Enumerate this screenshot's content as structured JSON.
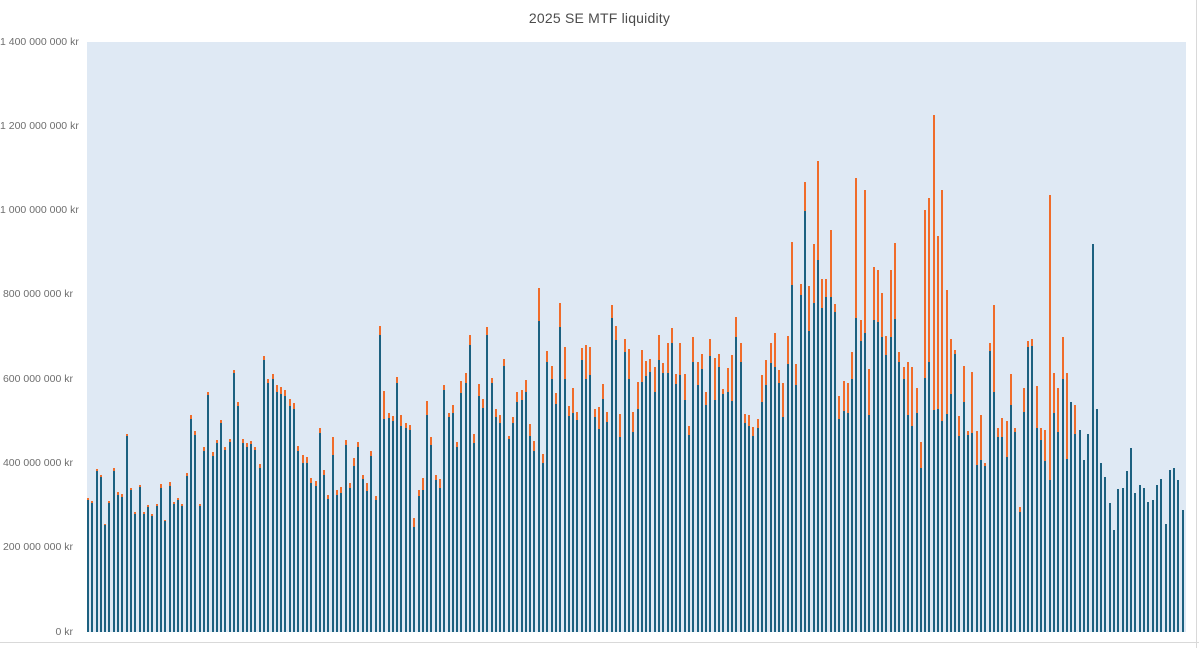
{
  "title": "2025 SE MTF liquidity",
  "colors": {
    "bar_primary": "#1d6180",
    "bar_secondary": "#f06c2a",
    "plot_background": "#dfe9f4",
    "title_text": "#4c4c4c",
    "axis_text": "#6e6e6e",
    "divider_line": "#d9d9d9"
  },
  "axes": {
    "y_unit": "kr",
    "y_ticks": [
      {
        "value": 1400000000,
        "label": "1 400 000 000 kr"
      },
      {
        "value": 1200000000,
        "label": "1 200 000 000 kr"
      },
      {
        "value": 1000000000,
        "label": "1 000 000 000 kr"
      },
      {
        "value": 800000000,
        "label": "800 000 000 kr"
      },
      {
        "value": 600000000,
        "label": "600 000 000 kr"
      },
      {
        "value": 400000000,
        "label": "400 000 000 kr"
      },
      {
        "value": 200000000,
        "label": "200 000 000 kr"
      },
      {
        "value": 0,
        "label": "0 kr"
      }
    ]
  },
  "chart_data": {
    "type": "bar",
    "stacked": true,
    "title": "2025 SE MTF liquidity",
    "xlabel": "",
    "ylabel": "kr",
    "ylim": [
      0,
      1400000000
    ],
    "grid": false,
    "legend_position": "none",
    "series": [
      {
        "name": "bottom segment (dark blue)",
        "color": "#1d6180"
      },
      {
        "name": "top segment (orange)",
        "color": "#f06c2a"
      }
    ],
    "values_unit": "millions of kr per bar, [bottom_blue, top_orange], bars left to right",
    "values_millions_kr": [
      [
        313,
        5
      ],
      [
        306,
        4
      ],
      [
        381,
        6
      ],
      [
        368,
        5
      ],
      [
        253,
        3
      ],
      [
        306,
        6
      ],
      [
        383,
        7
      ],
      [
        326,
        6
      ],
      [
        321,
        6
      ],
      [
        464,
        6
      ],
      [
        336,
        6
      ],
      [
        281,
        4
      ],
      [
        343,
        6
      ],
      [
        280,
        4
      ],
      [
        297,
        5
      ],
      [
        276,
        4
      ],
      [
        299,
        5
      ],
      [
        341,
        10
      ],
      [
        263,
        3
      ],
      [
        346,
        9
      ],
      [
        303,
        5
      ],
      [
        313,
        5
      ],
      [
        299,
        5
      ],
      [
        371,
        6
      ],
      [
        505,
        10
      ],
      [
        468,
        8
      ],
      [
        298,
        6
      ],
      [
        430,
        10
      ],
      [
        562,
        8
      ],
      [
        418,
        10
      ],
      [
        448,
        8
      ],
      [
        495,
        8
      ],
      [
        432,
        8
      ],
      [
        450,
        8
      ],
      [
        614,
        8
      ],
      [
        537,
        8
      ],
      [
        448,
        10
      ],
      [
        440,
        8
      ],
      [
        445,
        8
      ],
      [
        432,
        8
      ],
      [
        390,
        8
      ],
      [
        645,
        10
      ],
      [
        590,
        10
      ],
      [
        600,
        12
      ],
      [
        570,
        17
      ],
      [
        565,
        16
      ],
      [
        560,
        15
      ],
      [
        536,
        16
      ],
      [
        530,
        14
      ],
      [
        429,
        12
      ],
      [
        401,
        20
      ],
      [
        400,
        15
      ],
      [
        354,
        12
      ],
      [
        346,
        12
      ],
      [
        472,
        12
      ],
      [
        373,
        12
      ],
      [
        315,
        11
      ],
      [
        420,
        43
      ],
      [
        326,
        12
      ],
      [
        331,
        12
      ],
      [
        443,
        12
      ],
      [
        342,
        12
      ],
      [
        393,
        20
      ],
      [
        440,
        12
      ],
      [
        362,
        11
      ],
      [
        334,
        20
      ],
      [
        417,
        12
      ],
      [
        313,
        10
      ],
      [
        705,
        22
      ],
      [
        505,
        68
      ],
      [
        507,
        12
      ],
      [
        500,
        12
      ],
      [
        590,
        16
      ],
      [
        488,
        28
      ],
      [
        484,
        12
      ],
      [
        480,
        12
      ],
      [
        250,
        20
      ],
      [
        322,
        16
      ],
      [
        338,
        28
      ],
      [
        516,
        32
      ],
      [
        444,
        18
      ],
      [
        360,
        13
      ],
      [
        342,
        20
      ],
      [
        575,
        12
      ],
      [
        511,
        8
      ],
      [
        519,
        20
      ],
      [
        440,
        12
      ],
      [
        567,
        28
      ],
      [
        592,
        23
      ],
      [
        680,
        24
      ],
      [
        448,
        21
      ],
      [
        560,
        28
      ],
      [
        532,
        20
      ],
      [
        705,
        18
      ],
      [
        590,
        12
      ],
      [
        510,
        20
      ],
      [
        495,
        20
      ],
      [
        632,
        16
      ],
      [
        458,
        8
      ],
      [
        495,
        15
      ],
      [
        546,
        24
      ],
      [
        550,
        24
      ],
      [
        570,
        28
      ],
      [
        466,
        28
      ],
      [
        430,
        24
      ],
      [
        738,
        78
      ],
      [
        400,
        22
      ],
      [
        640,
        28
      ],
      [
        600,
        32
      ],
      [
        540,
        26
      ],
      [
        724,
        56
      ],
      [
        600,
        76
      ],
      [
        512,
        24
      ],
      [
        520,
        58
      ],
      [
        503,
        20
      ],
      [
        645,
        28
      ],
      [
        600,
        80
      ],
      [
        610,
        66
      ],
      [
        510,
        20
      ],
      [
        482,
        52
      ],
      [
        553,
        36
      ],
      [
        498,
        24
      ],
      [
        745,
        32
      ],
      [
        694,
        32
      ],
      [
        462,
        56
      ],
      [
        664,
        32
      ],
      [
        600,
        72
      ],
      [
        475,
        47
      ],
      [
        530,
        63
      ],
      [
        593,
        75
      ],
      [
        608,
        36
      ],
      [
        616,
        32
      ],
      [
        570,
        60
      ],
      [
        645,
        60
      ],
      [
        614,
        25
      ],
      [
        615,
        70
      ],
      [
        685,
        37
      ],
      [
        588,
        25
      ],
      [
        610,
        76
      ],
      [
        550,
        63
      ],
      [
        468,
        22
      ],
      [
        640,
        60
      ],
      [
        585,
        55
      ],
      [
        624,
        36
      ],
      [
        538,
        32
      ],
      [
        655,
        40
      ],
      [
        550,
        100
      ],
      [
        630,
        30
      ],
      [
        565,
        12
      ],
      [
        570,
        57
      ],
      [
        547,
        110
      ],
      [
        700,
        48
      ],
      [
        640,
        45
      ],
      [
        495,
        23
      ],
      [
        490,
        25
      ],
      [
        465,
        22
      ],
      [
        485,
        21
      ],
      [
        545,
        65
      ],
      [
        586,
        60
      ],
      [
        638,
        47
      ],
      [
        629,
        80
      ],
      [
        590,
        32
      ],
      [
        510,
        80
      ],
      [
        637,
        66
      ],
      [
        823,
        103
      ],
      [
        585,
        50
      ],
      [
        800,
        26
      ],
      [
        1000,
        68
      ],
      [
        715,
        105
      ],
      [
        780,
        140
      ],
      [
        883,
        235
      ],
      [
        770,
        67
      ],
      [
        795,
        42
      ],
      [
        795,
        160
      ],
      [
        760,
        18
      ],
      [
        505,
        55
      ],
      [
        525,
        70
      ],
      [
        520,
        72
      ],
      [
        600,
        64
      ],
      [
        745,
        332
      ],
      [
        690,
        50
      ],
      [
        710,
        340
      ],
      [
        515,
        110
      ],
      [
        740,
        125
      ],
      [
        735,
        125
      ],
      [
        700,
        105
      ],
      [
        658,
        45
      ],
      [
        700,
        160
      ],
      [
        742,
        180
      ],
      [
        640,
        25
      ],
      [
        600,
        30
      ],
      [
        515,
        125
      ],
      [
        490,
        140
      ],
      [
        520,
        60
      ],
      [
        390,
        60
      ],
      [
        602,
        400
      ],
      [
        640,
        390
      ],
      [
        527,
        700
      ],
      [
        530,
        410
      ],
      [
        500,
        550
      ],
      [
        517,
        295
      ],
      [
        565,
        130
      ],
      [
        660,
        10
      ],
      [
        465,
        48
      ],
      [
        545,
        87
      ],
      [
        468,
        10
      ],
      [
        472,
        145
      ],
      [
        396,
        80
      ],
      [
        408,
        107
      ],
      [
        393,
        8
      ],
      [
        667,
        19
      ],
      [
        570,
        205
      ],
      [
        463,
        20
      ],
      [
        463,
        45
      ],
      [
        416,
        85
      ],
      [
        539,
        73
      ],
      [
        475,
        8
      ],
      [
        285,
        12
      ],
      [
        523,
        55
      ],
      [
        677,
        14
      ],
      [
        679,
        16
      ],
      [
        485,
        100
      ],
      [
        455,
        28
      ],
      [
        405,
        75
      ],
      [
        360,
        677
      ],
      [
        520,
        95
      ],
      [
        475,
        105
      ],
      [
        600,
        100
      ],
      [
        410,
        205
      ],
      [
        545,
        0
      ],
      [
        470,
        68
      ],
      [
        480,
        0
      ],
      [
        408,
        0
      ],
      [
        470,
        0
      ],
      [
        920,
        0
      ],
      [
        530,
        0
      ],
      [
        400,
        0
      ],
      [
        367,
        0
      ],
      [
        306,
        0
      ],
      [
        243,
        0
      ],
      [
        340,
        0
      ],
      [
        342,
        0
      ],
      [
        383,
        0
      ],
      [
        437,
        0
      ],
      [
        330,
        0
      ],
      [
        348,
        0
      ],
      [
        342,
        0
      ],
      [
        308,
        0
      ],
      [
        314,
        0
      ],
      [
        350,
        0
      ],
      [
        362,
        0
      ],
      [
        257,
        0
      ],
      [
        385,
        0
      ],
      [
        390,
        0
      ],
      [
        360,
        0
      ],
      [
        290,
        0
      ]
    ]
  }
}
